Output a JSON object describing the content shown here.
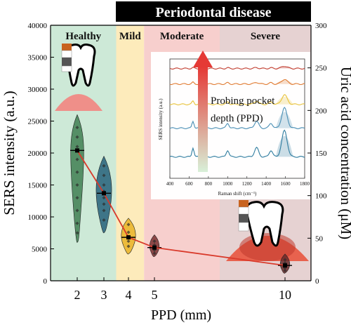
{
  "chart_data": {
    "type": "violin",
    "banner": "Periodontal disease",
    "stages": [
      "Healthy",
      "Mild",
      "Moderate",
      "Severe"
    ],
    "stage_colors": [
      "#cde9d7",
      "#fdebbb",
      "#f7cfcd",
      "#e6d2d2"
    ],
    "stage_ranges_ppd": [
      [
        1,
        3.5
      ],
      [
        3.5,
        4.6
      ],
      [
        4.6,
        7.5
      ],
      [
        7.5,
        11
      ]
    ],
    "xlabel": "PPD (mm)",
    "ylabel_left": "SERS intensity (a.u.)",
    "ylabel_right": "Uric acid concentration (μM)",
    "x_ticks": [
      2,
      3,
      4,
      5,
      10
    ],
    "xlim": [
      1,
      11
    ],
    "ylim_left": [
      0,
      40000
    ],
    "y_ticks_left": [
      0,
      5000,
      10000,
      15000,
      20000,
      25000,
      30000,
      35000,
      40000
    ],
    "ylim_right": [
      0,
      300
    ],
    "y_ticks_right": [
      0,
      50,
      100,
      150,
      200,
      250,
      300
    ],
    "trend_line": {
      "x": [
        2,
        3,
        4,
        5,
        10
      ],
      "y": [
        20400,
        13700,
        6800,
        5200,
        2400
      ],
      "color": "#d93a2b"
    },
    "violins": [
      {
        "x": 2,
        "median": 20400,
        "min": 6000,
        "max": 26000,
        "color": "#3f7f52",
        "points": [
          24000,
          22500,
          21000,
          19000,
          17000,
          15000,
          13000,
          11000,
          9000,
          7500
        ]
      },
      {
        "x": 3,
        "median": 13700,
        "min": 7500,
        "max": 19500,
        "color": "#25607a",
        "points": [
          18000,
          16500,
          15000,
          14000,
          13000,
          12000,
          11000,
          9500
        ]
      },
      {
        "x": 4,
        "median": 6800,
        "min": 4200,
        "max": 9800,
        "color": "#e9b325",
        "points": [
          8800,
          7600,
          6900,
          6200,
          5400
        ]
      },
      {
        "x": 5,
        "median": 5200,
        "min": 3800,
        "max": 7200,
        "color": "#7a3030",
        "points": [
          6200,
          5600,
          4800,
          4300
        ]
      },
      {
        "x": 10,
        "median": 2400,
        "min": 1200,
        "max": 4200,
        "color": "#6a2a2a",
        "points": [
          3300,
          2800,
          2000,
          1600
        ]
      }
    ],
    "inset": {
      "ylabel": "SERS intensity (a.u.)",
      "xlabel": "Raman shift (cm⁻¹)",
      "x_ticks": [
        400,
        600,
        800,
        1000,
        1200,
        1400,
        1600,
        1800
      ],
      "xlim": [
        400,
        1800
      ],
      "arrow_label": "Probing pocket depth (PPD)",
      "arrow_label_line1": "Probing pocket",
      "arrow_label_line2": "depth (PPD)",
      "spectra": [
        {
          "color": "#c0392b",
          "baseline": 0.92
        },
        {
          "color": "#e07a30",
          "baseline": 0.79
        },
        {
          "color": "#e8c33a",
          "baseline": 0.62
        },
        {
          "color": "#4a8fb5",
          "baseline": 0.42
        },
        {
          "color": "#2f7da0",
          "baseline": 0.18
        }
      ]
    }
  }
}
